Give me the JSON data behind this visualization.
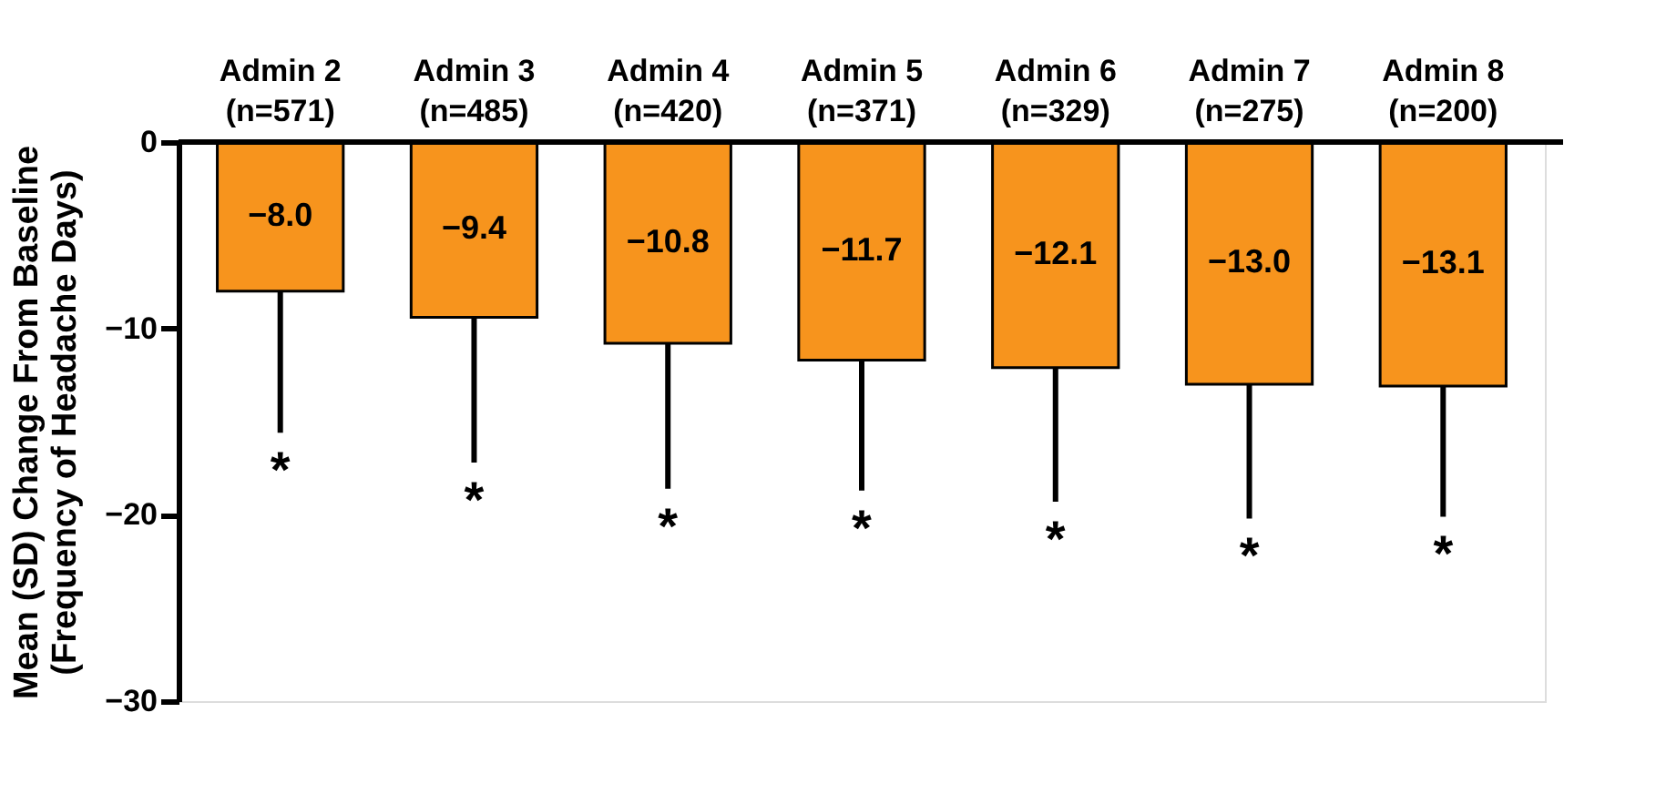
{
  "chart_data": {
    "type": "bar",
    "ylabel": "Mean (SD) Change From Baseline\n(Frequency of Headache Days)",
    "categories": [
      "Admin 2\n(n=571)",
      "Admin 3\n(n=485)",
      "Admin 4\n(n=420)",
      "Admin 5\n(n=371)",
      "Admin 6\n(n=329)",
      "Admin 7\n(n=275)",
      "Admin 8\n(n=200)"
    ],
    "values": [
      -8.0,
      -9.4,
      -10.8,
      -11.7,
      -12.1,
      -13.0,
      -13.1
    ],
    "value_labels": [
      "−8.0",
      "−9.4",
      "−10.8",
      "−11.7",
      "−12.1",
      "−13.0",
      "−13.1"
    ],
    "errors": [
      [
        -15.6,
        -8.0
      ],
      [
        -17.2,
        -9.4
      ],
      [
        -18.6,
        -10.8
      ],
      [
        -18.7,
        -11.7
      ],
      [
        -19.3,
        -12.1
      ],
      [
        -20.2,
        -13.0
      ],
      [
        -20.1,
        -13.1
      ]
    ],
    "color": "#f7941d",
    "ylim": [
      -30,
      0
    ],
    "yticks": [
      {
        "value": -30,
        "label": "−30"
      },
      {
        "value": -20,
        "label": "−20"
      },
      {
        "value": -10,
        "label": "−10"
      },
      0
    ],
    "grid": false,
    "annotations": [
      "*",
      "*",
      "*",
      "*",
      "*",
      "*",
      "*"
    ]
  }
}
